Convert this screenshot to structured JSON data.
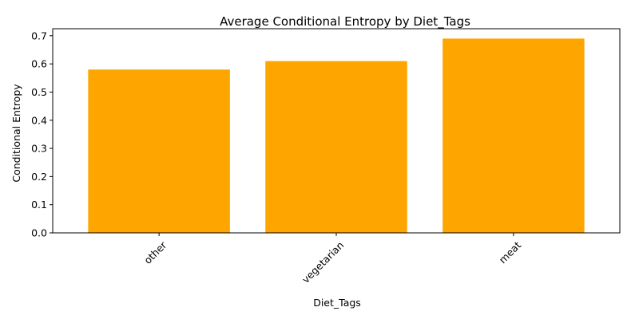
{
  "chart_data": {
    "type": "bar",
    "title": "Average Conditional Entropy by Diet_Tags",
    "xlabel": "Diet_Tags",
    "ylabel": "Conditional Entropy",
    "categories": [
      "other",
      "vegetarian",
      "meat"
    ],
    "values": [
      0.58,
      0.61,
      0.69
    ],
    "ylim": [
      0,
      0.725
    ],
    "yticks": [
      0.0,
      0.1,
      0.2,
      0.3,
      0.4,
      0.5,
      0.6,
      0.7
    ],
    "ytick_labels": [
      "0.0",
      "0.1",
      "0.2",
      "0.3",
      "0.4",
      "0.5",
      "0.6",
      "0.7"
    ],
    "bar_color": "#ffa500",
    "xtick_rotation_deg": 45,
    "grid": false,
    "legend": "none"
  }
}
